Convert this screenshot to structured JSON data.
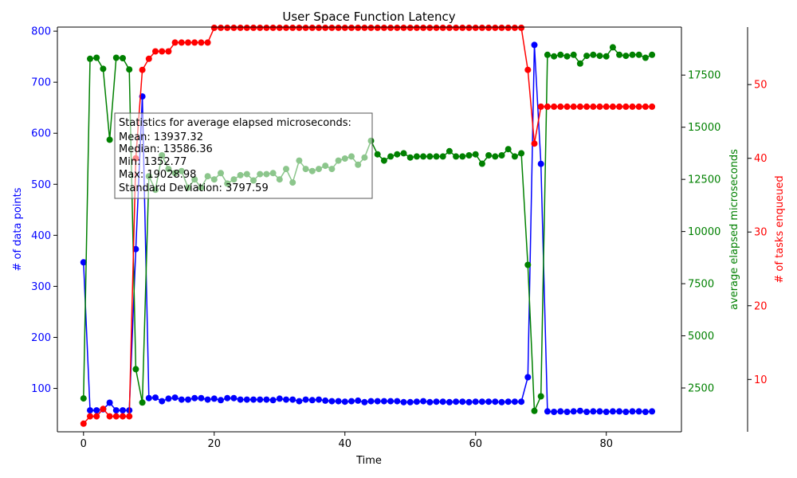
{
  "chart_data": {
    "type": "line",
    "title": "User Space Function Latency",
    "xlabel": "Time",
    "x_ticks": [
      0,
      20,
      40,
      60,
      80
    ],
    "xlim": [
      -4,
      91.5
    ],
    "axes": {
      "left": {
        "label": "# of data points",
        "color": "#0000ff",
        "ylim": [
          15,
          808
        ],
        "ticks": [
          100,
          200,
          300,
          400,
          500,
          600,
          700,
          800
        ]
      },
      "right": {
        "label": "average elapsed microseconds",
        "color": "#008000",
        "ylim": [
          400,
          19800
        ],
        "ticks": [
          2500,
          5000,
          7500,
          10000,
          12500,
          15000,
          17500
        ]
      },
      "right2": {
        "label": "# of tasks enqueued",
        "color": "#ff0000",
        "ylim": [
          2.9,
          57.8
        ],
        "ticks": [
          10,
          20,
          30,
          40,
          50
        ]
      }
    },
    "x": [
      0,
      1,
      2,
      3,
      4,
      5,
      6,
      7,
      8,
      9,
      10,
      11,
      12,
      13,
      14,
      15,
      16,
      17,
      18,
      19,
      20,
      21,
      22,
      23,
      24,
      25,
      26,
      27,
      28,
      29,
      30,
      31,
      32,
      33,
      34,
      35,
      36,
      37,
      38,
      39,
      40,
      41,
      42,
      43,
      44,
      45,
      46,
      47,
      48,
      49,
      50,
      51,
      52,
      53,
      54,
      55,
      56,
      57,
      58,
      59,
      60,
      61,
      62,
      63,
      64,
      65,
      66,
      67,
      68,
      69,
      70,
      71,
      72,
      73,
      74,
      75,
      76,
      77,
      78,
      79,
      80,
      81,
      82,
      83,
      84,
      85,
      86,
      87
    ],
    "series": [
      {
        "name": "# of data points",
        "axis": "left",
        "color": "#0000ff",
        "values": [
          347,
          57,
          57,
          59,
          72,
          57,
          57,
          57,
          373,
          672,
          81,
          82,
          75,
          80,
          82,
          78,
          78,
          81,
          81,
          78,
          80,
          77,
          81,
          81,
          78,
          78,
          78,
          78,
          78,
          77,
          80,
          78,
          78,
          75,
          78,
          77,
          78,
          76,
          75,
          75,
          74,
          75,
          76,
          73,
          75,
          75,
          75,
          75,
          75,
          73,
          73,
          74,
          75,
          73,
          74,
          74,
          73,
          74,
          74,
          73,
          74,
          74,
          74,
          74,
          73,
          74,
          74,
          74,
          122,
          773,
          540,
          55,
          54,
          55,
          54,
          55,
          56,
          54,
          55,
          55,
          54,
          55,
          55,
          54,
          55,
          55,
          54,
          55
        ]
      },
      {
        "name": "average elapsed microseconds",
        "axis": "right",
        "color": "#008000",
        "values": [
          2000,
          18280,
          18330,
          17800,
          14400,
          18330,
          18310,
          17770,
          3400,
          1800,
          12650,
          12000,
          13650,
          13000,
          12800,
          12900,
          12100,
          12500,
          12100,
          12650,
          12500,
          12800,
          12300,
          12500,
          12700,
          12750,
          12450,
          12750,
          12750,
          12800,
          12500,
          13000,
          12350,
          13400,
          13000,
          12900,
          13000,
          13150,
          13000,
          13400,
          13500,
          13600,
          13200,
          13550,
          14350,
          13700,
          13400,
          13600,
          13700,
          13750,
          13550,
          13600,
          13600,
          13600,
          13600,
          13600,
          13850,
          13600,
          13600,
          13650,
          13700,
          13250,
          13650,
          13600,
          13650,
          13950,
          13600,
          13750,
          8400,
          1400,
          2100,
          18470,
          18400,
          18470,
          18400,
          18470,
          18050,
          18420,
          18470,
          18420,
          18400,
          18830,
          18470,
          18420,
          18470,
          18470,
          18330,
          18470
        ]
      },
      {
        "name": "# of tasks enqueued",
        "axis": "right2",
        "color": "#ff0000",
        "values": [
          4,
          5,
          5,
          6,
          5,
          5,
          5,
          5,
          40,
          52,
          53.5,
          54.5,
          54.5,
          54.5,
          55.7,
          55.7,
          55.7,
          55.7,
          55.7,
          55.7,
          57.7,
          57.7,
          57.7,
          57.7,
          57.7,
          57.7,
          57.7,
          57.7,
          57.7,
          57.7,
          57.7,
          57.7,
          57.7,
          57.7,
          57.7,
          57.7,
          57.7,
          57.7,
          57.7,
          57.7,
          57.7,
          57.7,
          57.7,
          57.7,
          57.7,
          57.7,
          57.7,
          57.7,
          57.7,
          57.7,
          57.7,
          57.7,
          57.7,
          57.7,
          57.7,
          57.7,
          57.7,
          57.7,
          57.7,
          57.7,
          57.7,
          57.7,
          57.7,
          57.7,
          57.7,
          57.7,
          57.7,
          57.7,
          52,
          42,
          47,
          47,
          47,
          47,
          47,
          47,
          47,
          47,
          47,
          47,
          47,
          47,
          47,
          47,
          47,
          47,
          47,
          47
        ]
      }
    ],
    "annotation": {
      "lines": [
        "Statistics for average elapsed microseconds:",
        "Mean: 13937.32",
        "Median: 13586.36",
        "Min: 1352.77",
        "Max: 19028.98",
        "Standard Deviation: 3797.59"
      ]
    },
    "grid": false
  }
}
